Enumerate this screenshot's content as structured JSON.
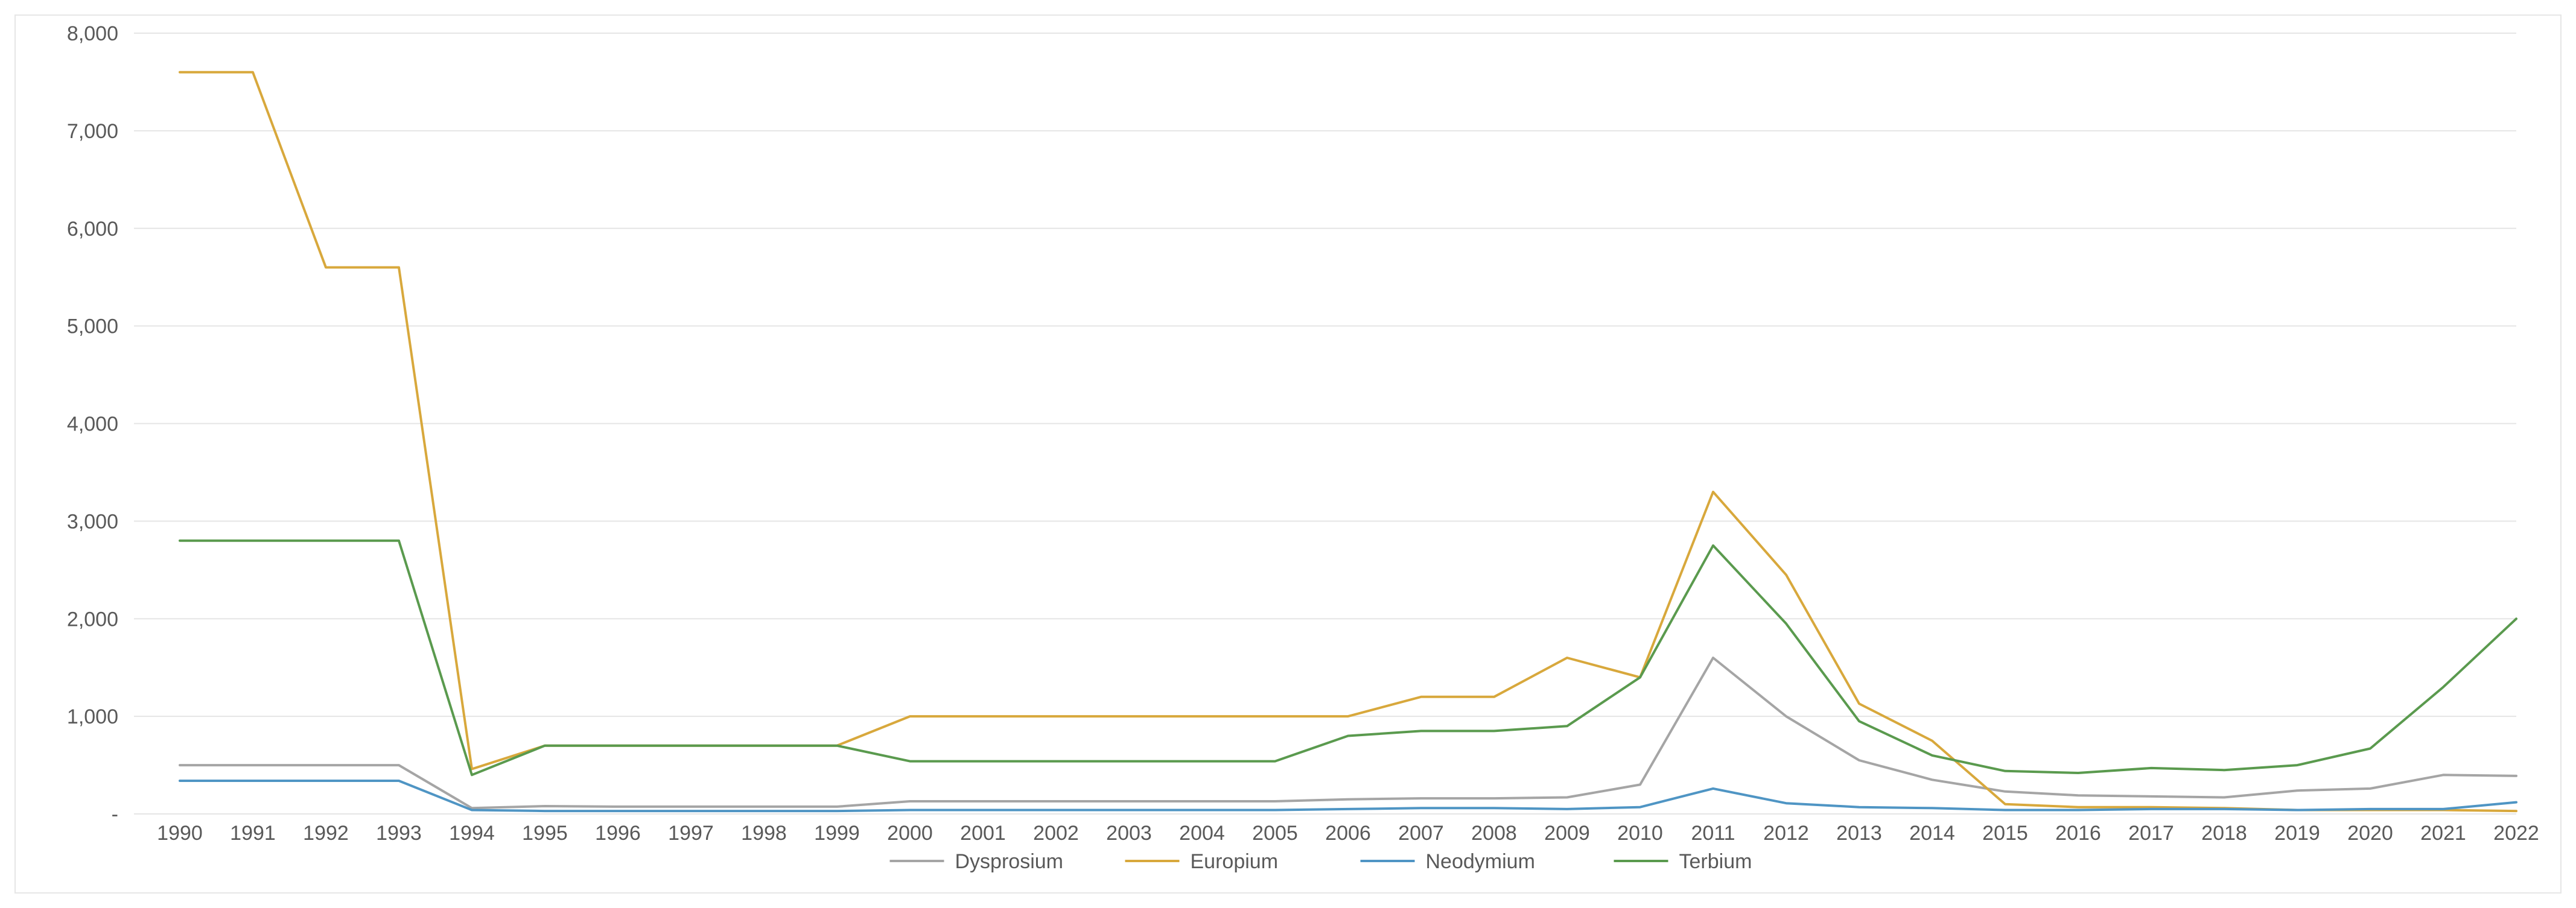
{
  "chart_data": {
    "type": "line",
    "title": "",
    "xlabel": "",
    "ylabel": "",
    "ylim": [
      0,
      8000
    ],
    "yticks": [
      0,
      1000,
      2000,
      3000,
      4000,
      5000,
      6000,
      7000,
      8000
    ],
    "ytick_labels": [
      "-",
      "1,000",
      "2,000",
      "3,000",
      "4,000",
      "5,000",
      "6,000",
      "7,000",
      "8,000"
    ],
    "grid": "horizontal",
    "legend_position": "bottom",
    "x": [
      "1990",
      "1991",
      "1992",
      "1993",
      "1994",
      "1995",
      "1996",
      "1997",
      "1998",
      "1999",
      "2000",
      "2001",
      "2002",
      "2003",
      "2004",
      "2005",
      "2006",
      "2007",
      "2008",
      "2009",
      "2010",
      "2011",
      "2012",
      "2013",
      "2014",
      "2015",
      "2016",
      "2017",
      "2018",
      "2019",
      "2020",
      "2021",
      "2022"
    ],
    "series": [
      {
        "name": "Dysprosium",
        "color": "#a5a5a5",
        "values": [
          500,
          500,
          500,
          500,
          60,
          80,
          75,
          75,
          75,
          75,
          130,
          130,
          130,
          130,
          130,
          130,
          150,
          160,
          160,
          170,
          300,
          1600,
          1000,
          550,
          350,
          230,
          190,
          180,
          170,
          240,
          260,
          400,
          390
        ]
      },
      {
        "name": "Europium",
        "color": "#d8a83c",
        "values": [
          7600,
          7600,
          5600,
          5600,
          460,
          700,
          700,
          700,
          700,
          700,
          1000,
          1000,
          1000,
          1000,
          1000,
          1000,
          1000,
          1200,
          1200,
          1600,
          1400,
          3300,
          2450,
          1130,
          750,
          100,
          70,
          70,
          60,
          40,
          40,
          40,
          30
        ]
      },
      {
        "name": "Neodymium",
        "color": "#4f95c4",
        "values": [
          340,
          340,
          340,
          340,
          40,
          30,
          30,
          30,
          30,
          30,
          40,
          40,
          40,
          40,
          40,
          40,
          50,
          60,
          60,
          50,
          70,
          260,
          110,
          70,
          60,
          40,
          40,
          50,
          50,
          40,
          50,
          50,
          120
        ]
      },
      {
        "name": "Terbium",
        "color": "#5a9a4e",
        "values": [
          2800,
          2800,
          2800,
          2800,
          400,
          700,
          700,
          700,
          700,
          700,
          540,
          540,
          540,
          540,
          540,
          540,
          800,
          850,
          850,
          900,
          1400,
          2750,
          1950,
          950,
          600,
          440,
          420,
          470,
          450,
          500,
          670,
          1300,
          2000
        ]
      }
    ]
  }
}
